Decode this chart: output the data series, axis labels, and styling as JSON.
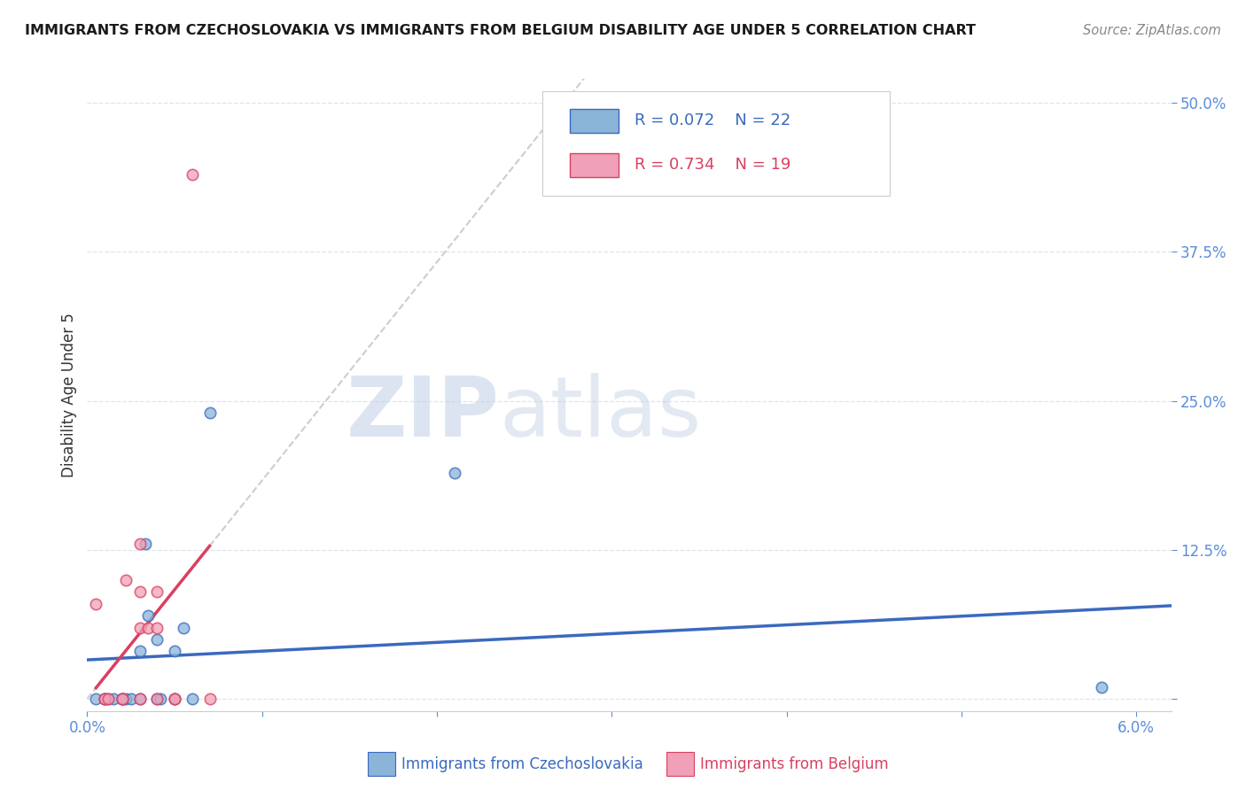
{
  "title": "IMMIGRANTS FROM CZECHOSLOVAKIA VS IMMIGRANTS FROM BELGIUM DISABILITY AGE UNDER 5 CORRELATION CHART",
  "source": "Source: ZipAtlas.com",
  "ylabel": "Disability Age Under 5",
  "xlim": [
    0.0,
    0.062
  ],
  "ylim": [
    -0.01,
    0.52
  ],
  "yticks": [
    0.0,
    0.125,
    0.25,
    0.375,
    0.5
  ],
  "yticklabels": [
    "",
    "12.5%",
    "25.0%",
    "37.5%",
    "50.0%"
  ],
  "xticks": [
    0.0,
    0.01,
    0.02,
    0.03,
    0.04,
    0.05,
    0.06
  ],
  "xticklabels": [
    "0.0%",
    "",
    "",
    "",
    "",
    "",
    "6.0%"
  ],
  "color_czechoslovakia": "#8ab4d8",
  "color_belgium": "#f0a0b8",
  "trendline_czechoslovakia": "#3a6abf",
  "trendline_belgium": "#d94060",
  "trendline_ext_color": "#c8c8c8",
  "legend_r_czechoslovakia": "R = 0.072",
  "legend_n_czechoslovakia": "N = 22",
  "legend_r_belgium": "R = 0.734",
  "legend_n_belgium": "N = 19",
  "czechoslovakia_x": [
    0.0005,
    0.001,
    0.0012,
    0.0015,
    0.002,
    0.002,
    0.0022,
    0.0025,
    0.003,
    0.003,
    0.0033,
    0.0035,
    0.004,
    0.004,
    0.0042,
    0.005,
    0.005,
    0.0055,
    0.006,
    0.007,
    0.021,
    0.058
  ],
  "czechoslovakia_y": [
    0.0,
    0.0,
    0.0,
    0.0,
    0.0,
    0.0,
    0.0,
    0.0,
    0.0,
    0.04,
    0.13,
    0.07,
    0.0,
    0.05,
    0.0,
    0.0,
    0.04,
    0.06,
    0.0,
    0.24,
    0.19,
    0.01
  ],
  "belgium_x": [
    0.0005,
    0.001,
    0.001,
    0.0012,
    0.002,
    0.002,
    0.0022,
    0.003,
    0.003,
    0.003,
    0.003,
    0.0035,
    0.004,
    0.004,
    0.004,
    0.005,
    0.005,
    0.006,
    0.007
  ],
  "belgium_y": [
    0.08,
    0.0,
    0.0,
    0.0,
    0.0,
    0.0,
    0.1,
    0.0,
    0.06,
    0.09,
    0.13,
    0.06,
    0.0,
    0.06,
    0.09,
    0.0,
    0.0,
    0.44,
    0.0
  ],
  "watermark_zip": "ZIP",
  "watermark_atlas": "atlas",
  "background_color": "#ffffff",
  "grid_color": "#dde5f0",
  "axis_color": "#5b8dd9",
  "title_color": "#1a1a1a",
  "source_color": "#888888",
  "ylabel_color": "#333333",
  "marker_size": 80,
  "marker_edge_width": 1.2
}
